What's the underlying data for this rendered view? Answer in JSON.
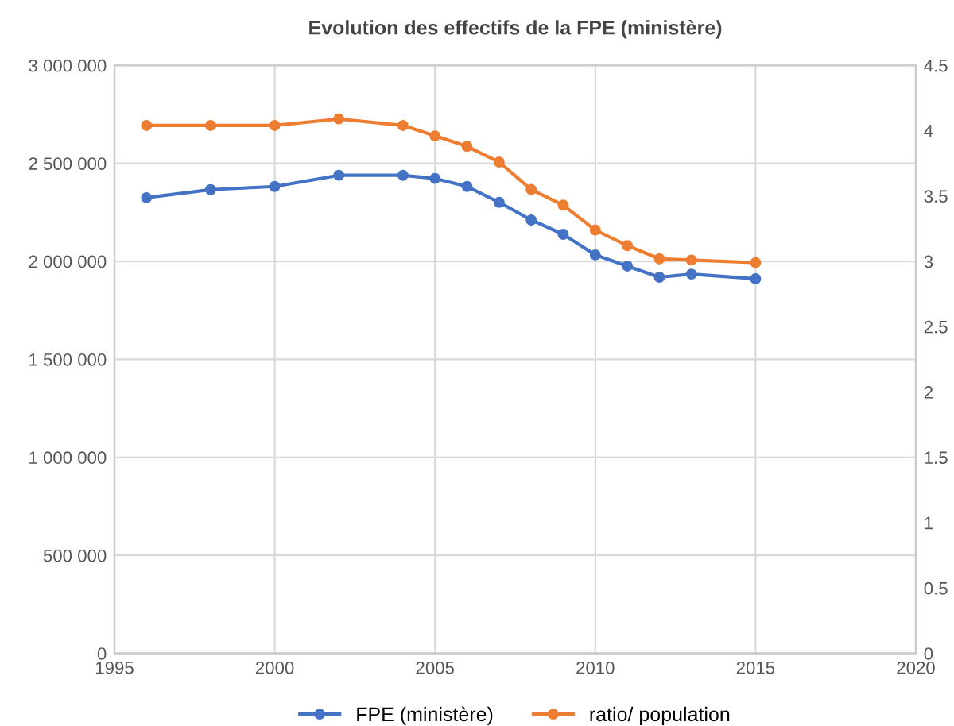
{
  "chart_data": {
    "type": "line",
    "title": "Evolution des effectifs de la FPE (ministère)",
    "x": [
      1996,
      1998,
      2000,
      2002,
      2004,
      2005,
      2006,
      2007,
      2008,
      2009,
      2010,
      2011,
      2012,
      2013,
      2015
    ],
    "series": [
      {
        "name": "FPE (ministère)",
        "color": "#4472c4",
        "values": [
          2325000,
          2366000,
          2382000,
          2439000,
          2439000,
          2423000,
          2382000,
          2301000,
          2211000,
          2138000,
          2033000,
          1976000,
          1919000,
          1935000,
          1911000
        ]
      },
      {
        "name": "ratio/ population",
        "color": "#ed7d31",
        "axis": "y2",
        "values": [
          4.04,
          4.04,
          4.04,
          4.09,
          4.04,
          3.96,
          3.88,
          3.76,
          3.55,
          3.43,
          3.24,
          3.12,
          3.02,
          3.01,
          2.99
        ]
      }
    ],
    "xlim": [
      1995,
      2020
    ],
    "xticks": [
      1995,
      2000,
      2005,
      2010,
      2015,
      2020
    ],
    "ylim": [
      0,
      3000000
    ],
    "yticks": [
      0,
      {
        "value": 500000,
        "label": "500 000"
      },
      {
        "value": 1000000,
        "label": "1 000 000"
      },
      {
        "value": 1500000,
        "label": "1 500 000"
      },
      {
        "value": 2000000,
        "label": "2 000 000"
      },
      {
        "value": 2500000,
        "label": "2 500 000"
      },
      {
        "value": 3000000,
        "label": "3 000 000"
      }
    ],
    "y2lim": [
      0,
      4.5
    ],
    "y2ticks": [
      0,
      0.5,
      1,
      1.5,
      2,
      2.5,
      3,
      3.5,
      4,
      4.5
    ],
    "grid": true,
    "legend": "bottom",
    "marker": "circle",
    "line_style": "solid"
  }
}
